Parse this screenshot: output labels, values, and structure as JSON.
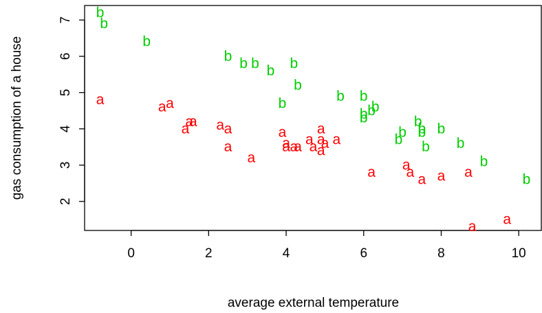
{
  "chart_data": {
    "type": "scatter",
    "xlabel": "average external temperature",
    "ylabel": "gas consumption of a house",
    "xlim": [
      -1.2,
      10.6
    ],
    "ylim": [
      1.2,
      7.4
    ],
    "x_ticks": [
      0,
      2,
      4,
      6,
      8,
      10
    ],
    "y_ticks": [
      2,
      3,
      4,
      5,
      6,
      7
    ],
    "grid": false,
    "series": [
      {
        "marker": "a",
        "color": "#ff0000",
        "points": [
          {
            "x": -0.8,
            "y": 4.8
          },
          {
            "x": 0.8,
            "y": 4.6
          },
          {
            "x": 1.0,
            "y": 4.7
          },
          {
            "x": 1.4,
            "y": 4.0
          },
          {
            "x": 1.5,
            "y": 4.2
          },
          {
            "x": 1.6,
            "y": 4.2
          },
          {
            "x": 2.3,
            "y": 4.1
          },
          {
            "x": 2.5,
            "y": 4.0
          },
          {
            "x": 2.5,
            "y": 3.5
          },
          {
            "x": 3.1,
            "y": 3.2
          },
          {
            "x": 3.9,
            "y": 3.9
          },
          {
            "x": 4.0,
            "y": 3.6
          },
          {
            "x": 4.0,
            "y": 3.5
          },
          {
            "x": 4.2,
            "y": 3.5
          },
          {
            "x": 4.3,
            "y": 3.5
          },
          {
            "x": 4.6,
            "y": 3.7
          },
          {
            "x": 4.7,
            "y": 3.5
          },
          {
            "x": 4.9,
            "y": 4.0
          },
          {
            "x": 4.9,
            "y": 3.7
          },
          {
            "x": 4.9,
            "y": 3.4
          },
          {
            "x": 5.0,
            "y": 3.6
          },
          {
            "x": 5.3,
            "y": 3.7
          },
          {
            "x": 6.2,
            "y": 2.8
          },
          {
            "x": 7.1,
            "y": 3.0
          },
          {
            "x": 7.2,
            "y": 2.8
          },
          {
            "x": 7.5,
            "y": 2.6
          },
          {
            "x": 8.0,
            "y": 2.7
          },
          {
            "x": 8.7,
            "y": 2.8
          },
          {
            "x": 8.8,
            "y": 1.3
          },
          {
            "x": 9.7,
            "y": 1.5
          }
        ]
      },
      {
        "marker": "b",
        "color": "#00cd00",
        "points": [
          {
            "x": -0.8,
            "y": 7.2
          },
          {
            "x": -0.7,
            "y": 6.9
          },
          {
            "x": 0.4,
            "y": 6.4
          },
          {
            "x": 2.5,
            "y": 6.0
          },
          {
            "x": 2.9,
            "y": 5.8
          },
          {
            "x": 3.2,
            "y": 5.8
          },
          {
            "x": 3.6,
            "y": 5.6
          },
          {
            "x": 3.9,
            "y": 4.7
          },
          {
            "x": 4.2,
            "y": 5.8
          },
          {
            "x": 4.3,
            "y": 5.2
          },
          {
            "x": 5.4,
            "y": 4.9
          },
          {
            "x": 6.0,
            "y": 4.9
          },
          {
            "x": 6.0,
            "y": 4.4
          },
          {
            "x": 6.0,
            "y": 4.3
          },
          {
            "x": 6.2,
            "y": 4.5
          },
          {
            "x": 6.3,
            "y": 4.6
          },
          {
            "x": 6.9,
            "y": 3.7
          },
          {
            "x": 7.0,
            "y": 3.9
          },
          {
            "x": 7.4,
            "y": 4.2
          },
          {
            "x": 7.5,
            "y": 4.0
          },
          {
            "x": 7.5,
            "y": 3.9
          },
          {
            "x": 7.6,
            "y": 3.5
          },
          {
            "x": 8.0,
            "y": 4.0
          },
          {
            "x": 8.5,
            "y": 3.6
          },
          {
            "x": 9.1,
            "y": 3.1
          },
          {
            "x": 10.2,
            "y": 2.6
          }
        ]
      }
    ]
  }
}
